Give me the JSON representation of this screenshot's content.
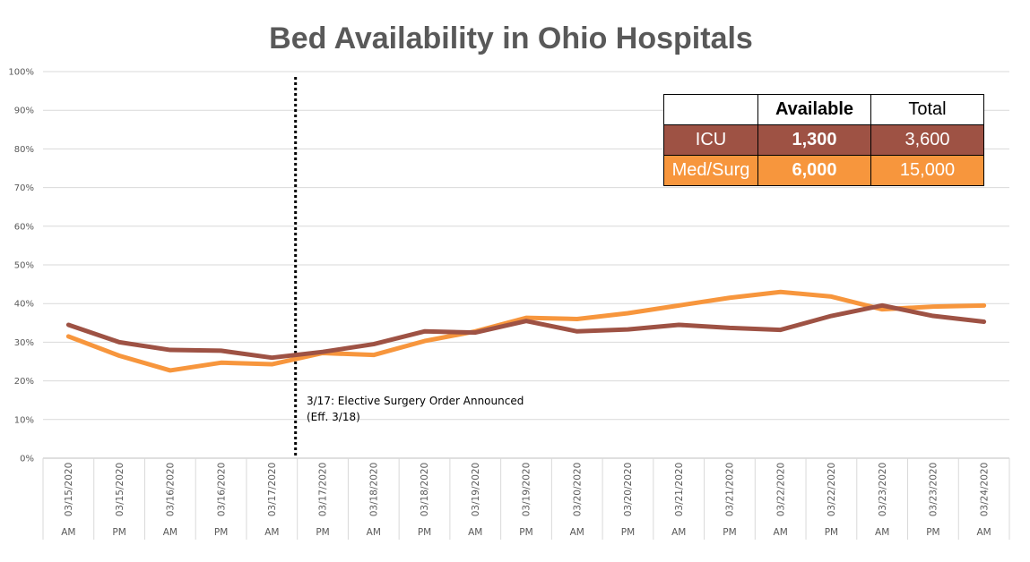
{
  "chart_data": {
    "type": "line",
    "title": "Bed Availability in Ohio Hospitals",
    "xlabel": "",
    "ylabel": "",
    "ylim": [
      0,
      100
    ],
    "y_ticks": [
      "0%",
      "10%",
      "20%",
      "30%",
      "40%",
      "50%",
      "60%",
      "70%",
      "80%",
      "90%",
      "100%"
    ],
    "categories": [
      {
        "date": "03/15/2020",
        "period": "AM"
      },
      {
        "date": "03/15/2020",
        "period": "PM"
      },
      {
        "date": "03/16/2020",
        "period": "AM"
      },
      {
        "date": "03/16/2020",
        "period": "PM"
      },
      {
        "date": "03/17/2020",
        "period": "AM"
      },
      {
        "date": "03/17/2020",
        "period": "PM"
      },
      {
        "date": "03/18/2020",
        "period": "AM"
      },
      {
        "date": "03/18/2020",
        "period": "PM"
      },
      {
        "date": "03/19/2020",
        "period": "AM"
      },
      {
        "date": "03/19/2020",
        "period": "PM"
      },
      {
        "date": "03/20/2020",
        "period": "AM"
      },
      {
        "date": "03/20/2020",
        "period": "PM"
      },
      {
        "date": "03/21/2020",
        "period": "AM"
      },
      {
        "date": "03/21/2020",
        "period": "PM"
      },
      {
        "date": "03/22/2020",
        "period": "AM"
      },
      {
        "date": "03/22/2020",
        "period": "PM"
      },
      {
        "date": "03/23/2020",
        "period": "AM"
      },
      {
        "date": "03/23/2020",
        "period": "PM"
      },
      {
        "date": "03/24/2020",
        "period": "AM"
      }
    ],
    "series": [
      {
        "name": "ICU",
        "color": "#9E5244",
        "values": [
          34.5,
          30.0,
          28.0,
          27.8,
          26.0,
          27.5,
          29.5,
          32.8,
          32.5,
          35.5,
          32.8,
          33.3,
          34.5,
          33.7,
          33.2,
          36.8,
          39.5,
          36.8,
          35.3
        ]
      },
      {
        "name": "Med/Surg",
        "color": "#F7963D",
        "values": [
          31.5,
          26.5,
          22.7,
          24.7,
          24.3,
          27.2,
          26.7,
          30.3,
          32.8,
          36.3,
          36.0,
          37.5,
          39.5,
          41.5,
          43.0,
          41.8,
          38.5,
          39.2,
          39.5
        ]
      }
    ],
    "marker": {
      "between_category_index": [
        4,
        5
      ],
      "label_line1": "3/17: Elective Surgery Order Announced",
      "label_line2": "(Eff. 3/18)"
    }
  },
  "summary_table": {
    "headers": [
      "",
      "Available",
      "Total"
    ],
    "rows": [
      {
        "label": "ICU",
        "available": "1,300",
        "total": "3,600"
      },
      {
        "label": "Med/Surg",
        "available": "6,000",
        "total": "15,000"
      }
    ]
  }
}
